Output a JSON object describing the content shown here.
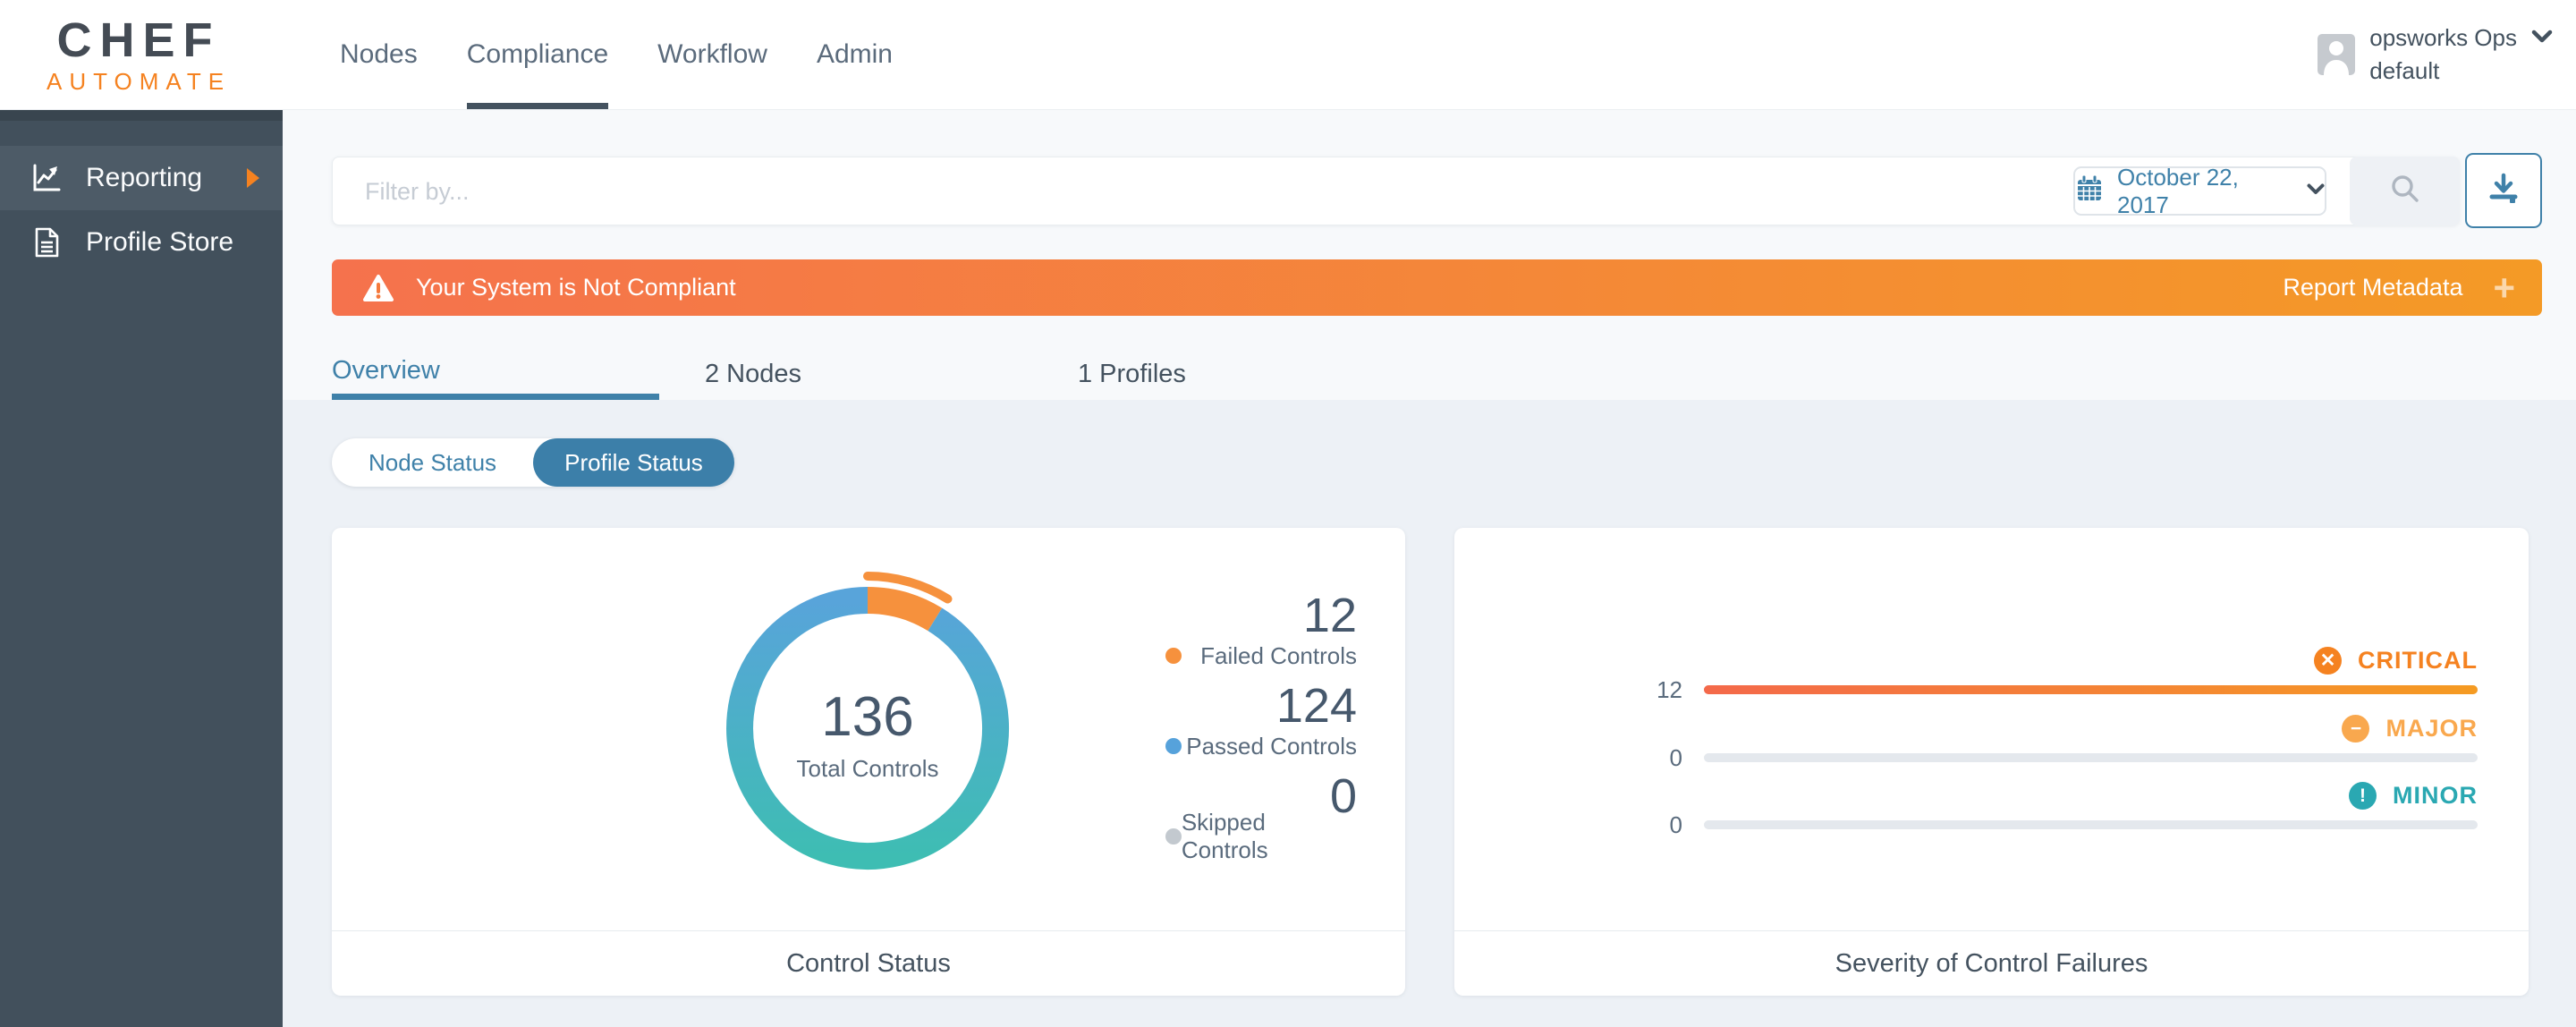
{
  "brand": {
    "name": "CHEF",
    "product": "AUTOMATE"
  },
  "nav": {
    "items": [
      {
        "label": "Nodes",
        "active": false
      },
      {
        "label": "Compliance",
        "active": true
      },
      {
        "label": "Workflow",
        "active": false
      },
      {
        "label": "Admin",
        "active": false
      }
    ]
  },
  "user": {
    "name": "opsworks Ops",
    "org": "default"
  },
  "sidebar": {
    "items": [
      {
        "label": "Reporting",
        "icon": "line-chart-icon",
        "active": true
      },
      {
        "label": "Profile Store",
        "icon": "document-icon",
        "active": false
      }
    ]
  },
  "filter": {
    "placeholder": "Filter by...",
    "date_label": "October 22, 2017"
  },
  "banner": {
    "message": "Your System is Not Compliant",
    "action_label": "Report Metadata",
    "action_icon": "+"
  },
  "tabs": {
    "items": [
      {
        "label": "Overview",
        "active": true
      },
      {
        "label": "2 Nodes",
        "active": false
      },
      {
        "label": "1 Profiles",
        "active": false
      }
    ]
  },
  "status_toggle": {
    "options": [
      {
        "label": "Node Status",
        "active": false
      },
      {
        "label": "Profile Status",
        "active": true
      }
    ]
  },
  "colors": {
    "accent_blue": "#3F81A9",
    "brand_orange": "#F58220",
    "sidebar_bg": "#42505C",
    "banner_gradient_start": "#F5724D",
    "banner_gradient_end": "#F49A26",
    "donut_blue_top": "#58A4DA",
    "donut_teal_bottom": "#3EBDB3",
    "donut_orange": "#F6913D",
    "severity_bar_start": "#F4694A",
    "severity_bar_end": "#F59B22"
  },
  "chart_data": [
    {
      "type": "pie",
      "variant": "donut",
      "title": "Control Status",
      "center_value": "136",
      "center_label": "Total Controls",
      "legend_position": "right",
      "series": [
        {
          "name": "Failed Controls",
          "value": 12,
          "color": "#F6913D"
        },
        {
          "name": "Passed Controls",
          "value": 124,
          "color": "#56A2DB"
        },
        {
          "name": "Skipped Controls",
          "value": 0,
          "color": "#C3C9CF"
        }
      ]
    },
    {
      "type": "bar",
      "orientation": "horizontal",
      "title": "Severity of Control Failures",
      "categories": [
        "CRITICAL",
        "MAJOR",
        "MINOR"
      ],
      "values": [
        12,
        0,
        0
      ],
      "colors": [
        "#F58220",
        "#F9A84E",
        "#2AA8B2"
      ],
      "xlim": [
        0,
        12
      ],
      "grid": false
    }
  ]
}
